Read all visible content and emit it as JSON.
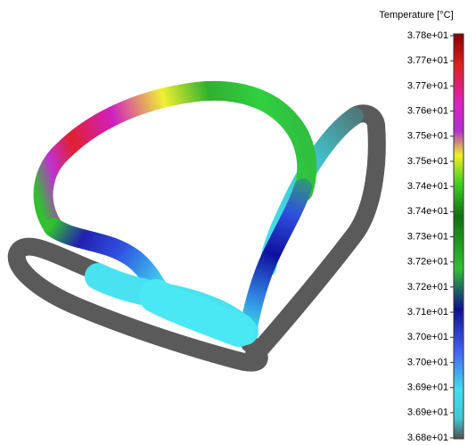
{
  "colorbar": {
    "title": "Temperature [°C]",
    "labels": [
      "3.78e+01",
      "3.77e+01",
      "3.77e+01",
      "3.76e+01",
      "3.75e+01",
      "3.75e+01",
      "3.74e+01",
      "3.74e+01",
      "3.73e+01",
      "3.72e+01",
      "3.72e+01",
      "3.71e+01",
      "3.70e+01",
      "3.70e+01",
      "3.69e+01",
      "3.69e+01",
      "3.68e+01"
    ]
  }
}
